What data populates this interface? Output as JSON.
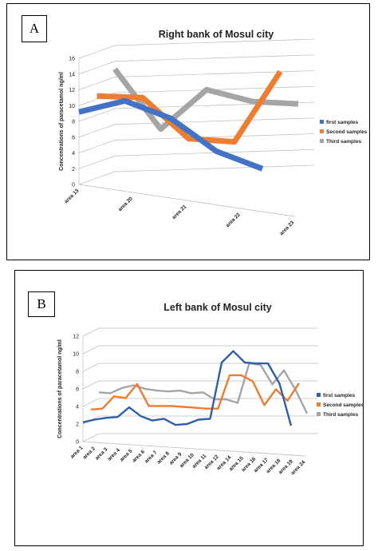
{
  "panels": {
    "a_label": "A",
    "b_label": "B"
  },
  "chart_data": [
    {
      "type": "line",
      "title": "Right bank of Mosul city",
      "ylabel": "Concentrations of paracetamol ng/ml",
      "xlabel": "",
      "ylim": [
        0,
        16
      ],
      "yticks": [
        0,
        2,
        4,
        6,
        8,
        10,
        12,
        14,
        16
      ],
      "categories": [
        "area 13",
        "area 20",
        "area 21",
        "area 22",
        "area 23"
      ],
      "grid": true,
      "legend": "right",
      "series": [
        {
          "name": "first samples",
          "color": "#4472C4",
          "values": [
            9.2,
            10.6,
            8.4,
            4.2,
            2.0
          ]
        },
        {
          "name": "Second samples",
          "color": "#ED7D31",
          "values": [
            10.4,
            10.2,
            5.0,
            4.6,
            13.5
          ]
        },
        {
          "name": "Third samples",
          "color": "#A5A5A5",
          "values": [
            13.0,
            5.4,
            10.4,
            8.9,
            8.6
          ]
        }
      ]
    },
    {
      "type": "line",
      "title": "Left bank of Mosul city",
      "ylabel": "Concentrations of paracetamol ng/ml",
      "xlabel": "",
      "ylim": [
        0,
        12
      ],
      "yticks": [
        0,
        2,
        4,
        6,
        8,
        10,
        12
      ],
      "categories": [
        "area 1",
        "area 2",
        "area 3",
        "area 4",
        "area 5",
        "area 6",
        "area 7",
        "area 8",
        "area 9",
        "area 10",
        "area 11",
        "area 12",
        "area 14",
        "area 15",
        "area 16",
        "area 17",
        "area 18",
        "area 19",
        "area 24"
      ],
      "grid": true,
      "legend": "right",
      "series": [
        {
          "name": "first samples",
          "color": "#2E5FA8",
          "values": [
            2.2,
            2.5,
            2.7,
            2.8,
            3.9,
            2.9,
            2.4,
            2.6,
            1.9,
            2.0,
            2.5,
            2.6,
            9.0,
            10.3,
            9.0,
            8.9,
            8.9,
            6.6,
            1.8
          ]
        },
        {
          "name": "Second samples",
          "color": "#ED7D31",
          "values": [
            3.2,
            3.3,
            4.7,
            4.5,
            6.1,
            3.6,
            3.6,
            3.6,
            3.5,
            3.4,
            3.3,
            3.3,
            7.1,
            7.1,
            6.4,
            3.7,
            5.5,
            4.2,
            6.2
          ]
        },
        {
          "name": "Third samples",
          "color": "#A5A5A5",
          "values": [
            4.7,
            4.6,
            5.2,
            5.5,
            5.1,
            4.9,
            4.8,
            4.9,
            4.6,
            4.7,
            3.9,
            3.9,
            3.5,
            8.0,
            7.8,
            5.6,
            7.2,
            5.0,
            2.3
          ]
        }
      ]
    }
  ]
}
